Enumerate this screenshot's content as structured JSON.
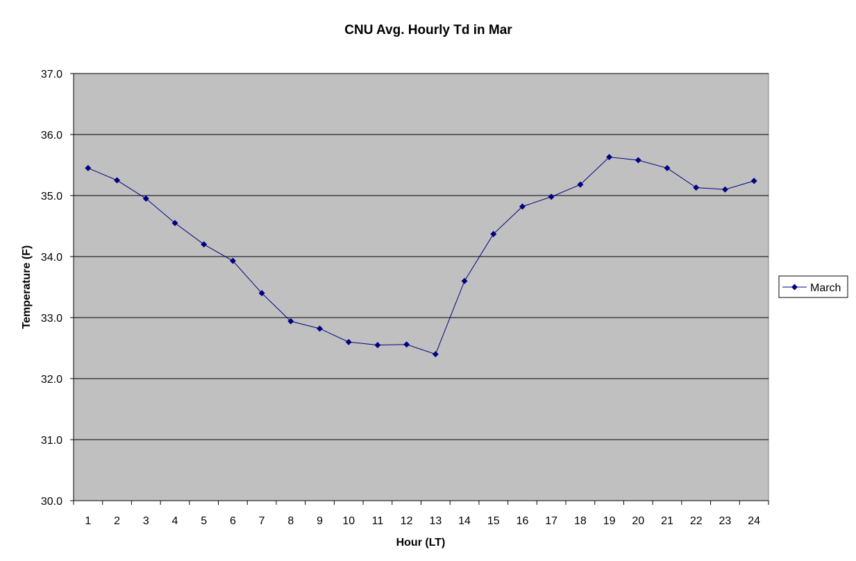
{
  "chart_data": {
    "type": "line",
    "title": "CNU Avg. Hourly Td in Mar",
    "xlabel": "Hour (LT)",
    "ylabel": "Temperature (F)",
    "x": [
      1,
      2,
      3,
      4,
      5,
      6,
      7,
      8,
      9,
      10,
      11,
      12,
      13,
      14,
      15,
      16,
      17,
      18,
      19,
      20,
      21,
      22,
      23,
      24
    ],
    "x_tick_labels": [
      "1",
      "2",
      "3",
      "4",
      "5",
      "6",
      "7",
      "8",
      "9",
      "10",
      "11",
      "12",
      "13",
      "14",
      "15",
      "16",
      "17",
      "18",
      "19",
      "20",
      "21",
      "22",
      "23",
      "24"
    ],
    "ylim": [
      30.0,
      37.0
    ],
    "y_tick_labels": [
      "30.0",
      "31.0",
      "32.0",
      "33.0",
      "34.0",
      "35.0",
      "36.0",
      "37.0"
    ],
    "y_ticks": [
      30,
      31,
      32,
      33,
      34,
      35,
      36,
      37
    ],
    "series": [
      {
        "name": "March",
        "color": "#000080",
        "marker": "diamond",
        "values": [
          35.45,
          35.25,
          34.95,
          34.55,
          34.2,
          33.93,
          33.4,
          32.94,
          32.82,
          32.6,
          32.55,
          32.56,
          32.4,
          33.6,
          34.37,
          34.82,
          34.98,
          35.18,
          35.63,
          35.58,
          35.45,
          35.13,
          35.1,
          35.24
        ]
      }
    ],
    "grid": true,
    "legend_position": "right",
    "plot_background": "#c0c0c0"
  }
}
